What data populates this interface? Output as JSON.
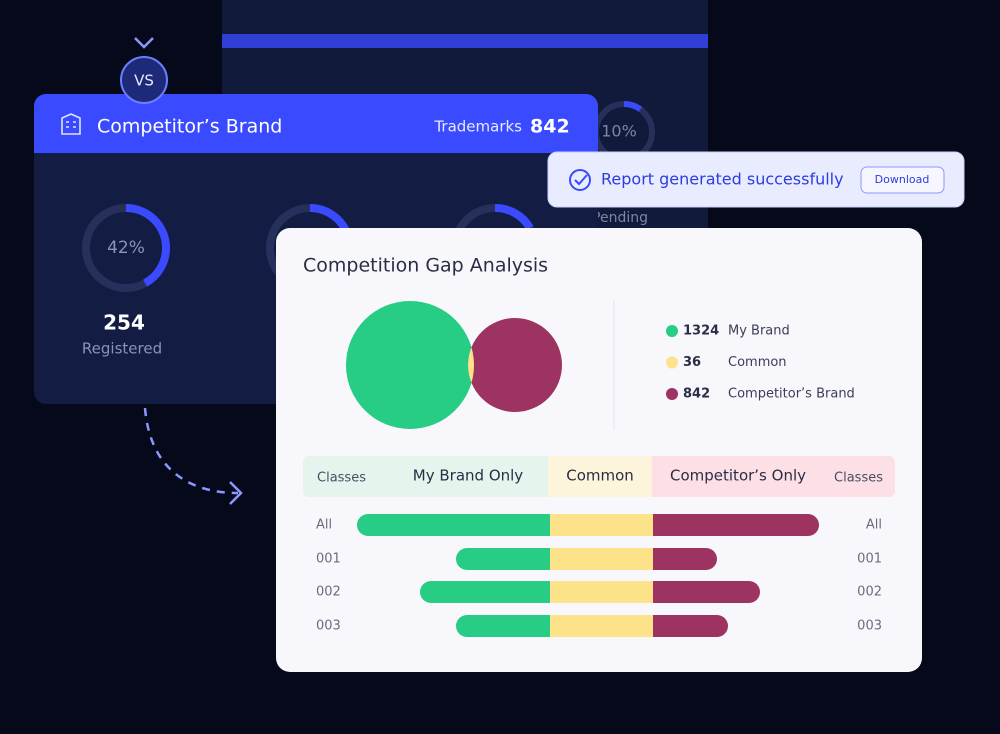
{
  "badge": "VS",
  "competitor_card": {
    "title": "Competitor’s Brand",
    "trademarks_label": "Trademarks",
    "trademarks": 842,
    "ring": {
      "percent": {
        "value": 42,
        "label": "42%"
      },
      "count": 254,
      "label": "Registered"
    }
  },
  "background_card": {
    "percent": {
      "value": 10,
      "label": "10%"
    },
    "label": "Pending"
  },
  "toast": {
    "message": "Report generated successfully",
    "button": "Download"
  },
  "analysis": {
    "title": "Competition Gap Analysis",
    "legend": [
      {
        "value": 1324,
        "name": "My Brand",
        "color": "#27cc85"
      },
      {
        "value": 36,
        "name": "Common",
        "color": "#fce38a"
      },
      {
        "value": 842,
        "name": "Competitor’s Brand",
        "color": "#9c3360"
      }
    ]
  },
  "chart_data": {
    "type": "diverging-bar",
    "header_left": "Classes",
    "header_right": "Classes",
    "categories": [
      "All",
      "001",
      "002",
      "003"
    ],
    "series": [
      {
        "name": "My Brand Only",
        "color": "#27cc85",
        "values": [
          193,
          94,
          130,
          94
        ]
      },
      {
        "name": "Common",
        "color": "#fce38a",
        "values": [
          103,
          103,
          103,
          103
        ]
      },
      {
        "name": "Competitor’s Only",
        "color": "#9c3360",
        "values": [
          166,
          64,
          107,
          75
        ]
      }
    ]
  }
}
